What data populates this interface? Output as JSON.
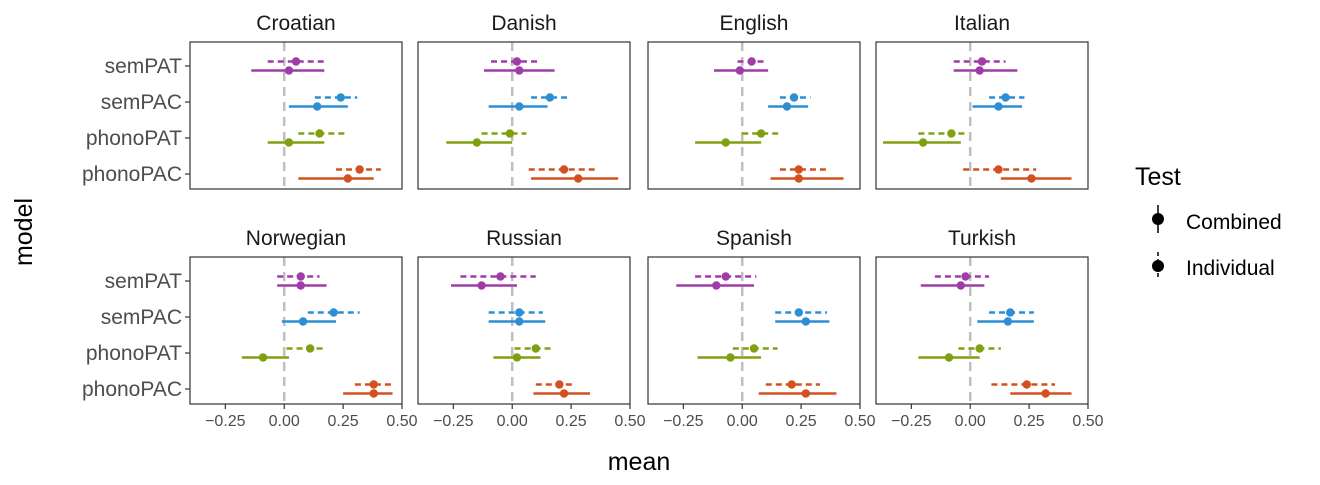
{
  "chart_data": {
    "type": "scatter",
    "subtype": "point-range forest plot, faceted 2x4",
    "xlabel": "mean",
    "ylabel": "model",
    "xlim": [
      -0.4,
      0.5
    ],
    "xticks": [
      -0.25,
      0.0,
      0.25,
      0.5
    ],
    "xtick_labels": [
      "−0.25",
      "0.00",
      "0.25",
      "0.50"
    ],
    "reference_line": 0,
    "models": [
      "semPAT",
      "semPAC",
      "phonoPAT",
      "phonoPAC"
    ],
    "model_colors": {
      "semPAT": "#a03ca8",
      "semPAC": "#2c8fd4",
      "phonoPAT": "#80a010",
      "phonoPAC": "#d4501e"
    },
    "legend": {
      "title": "Test",
      "position": "right",
      "items": [
        {
          "label": "Combined",
          "linetype": "solid"
        },
        {
          "label": "Individual",
          "linetype": "dashed"
        }
      ]
    },
    "facets": [
      {
        "language": "Croatian",
        "data": {
          "semPAT": {
            "individual": {
              "mean": 0.05,
              "lo": -0.07,
              "hi": 0.17
            },
            "combined": {
              "mean": 0.02,
              "lo": -0.14,
              "hi": 0.17
            }
          },
          "semPAC": {
            "individual": {
              "mean": 0.24,
              "lo": 0.13,
              "hi": 0.31
            },
            "combined": {
              "mean": 0.14,
              "lo": 0.02,
              "hi": 0.27
            }
          },
          "phonoPAT": {
            "individual": {
              "mean": 0.15,
              "lo": 0.06,
              "hi": 0.26
            },
            "combined": {
              "mean": 0.02,
              "lo": -0.07,
              "hi": 0.17
            }
          },
          "phonoPAC": {
            "individual": {
              "mean": 0.32,
              "lo": 0.22,
              "hi": 0.41
            },
            "combined": {
              "mean": 0.27,
              "lo": 0.06,
              "hi": 0.38
            }
          }
        }
      },
      {
        "language": "Danish",
        "data": {
          "semPAT": {
            "individual": {
              "mean": 0.02,
              "lo": -0.09,
              "hi": 0.12
            },
            "combined": {
              "mean": 0.03,
              "lo": -0.12,
              "hi": 0.18
            }
          },
          "semPAC": {
            "individual": {
              "mean": 0.16,
              "lo": 0.08,
              "hi": 0.25
            },
            "combined": {
              "mean": 0.03,
              "lo": -0.1,
              "hi": 0.15
            }
          },
          "phonoPAT": {
            "individual": {
              "mean": -0.01,
              "lo": -0.13,
              "hi": 0.06
            },
            "combined": {
              "mean": -0.15,
              "lo": -0.28,
              "hi": 0.0
            }
          },
          "phonoPAC": {
            "individual": {
              "mean": 0.22,
              "lo": 0.07,
              "hi": 0.35
            },
            "combined": {
              "mean": 0.28,
              "lo": 0.08,
              "hi": 0.45
            }
          }
        }
      },
      {
        "language": "English",
        "data": {
          "semPAT": {
            "individual": {
              "mean": 0.04,
              "lo": -0.02,
              "hi": 0.1
            },
            "combined": {
              "mean": -0.01,
              "lo": -0.12,
              "hi": 0.11
            }
          },
          "semPAC": {
            "individual": {
              "mean": 0.22,
              "lo": 0.16,
              "hi": 0.29
            },
            "combined": {
              "mean": 0.19,
              "lo": 0.11,
              "hi": 0.28
            }
          },
          "phonoPAT": {
            "individual": {
              "mean": 0.08,
              "lo": 0.0,
              "hi": 0.16
            },
            "combined": {
              "mean": -0.07,
              "lo": -0.2,
              "hi": 0.08
            }
          },
          "phonoPAC": {
            "individual": {
              "mean": 0.24,
              "lo": 0.16,
              "hi": 0.36
            },
            "combined": {
              "mean": 0.24,
              "lo": 0.12,
              "hi": 0.43
            }
          }
        }
      },
      {
        "language": "Italian",
        "data": {
          "semPAT": {
            "individual": {
              "mean": 0.05,
              "lo": -0.07,
              "hi": 0.15
            },
            "combined": {
              "mean": 0.04,
              "lo": -0.07,
              "hi": 0.2
            }
          },
          "semPAC": {
            "individual": {
              "mean": 0.15,
              "lo": 0.08,
              "hi": 0.23
            },
            "combined": {
              "mean": 0.12,
              "lo": 0.01,
              "hi": 0.22
            }
          },
          "phonoPAT": {
            "individual": {
              "mean": -0.08,
              "lo": -0.22,
              "hi": -0.02
            },
            "combined": {
              "mean": -0.2,
              "lo": -0.37,
              "hi": -0.04
            }
          },
          "phonoPAC": {
            "individual": {
              "mean": 0.12,
              "lo": -0.03,
              "hi": 0.28
            },
            "combined": {
              "mean": 0.26,
              "lo": 0.13,
              "hi": 0.43
            }
          }
        }
      },
      {
        "language": "Norwegian",
        "data": {
          "semPAT": {
            "individual": {
              "mean": 0.07,
              "lo": -0.03,
              "hi": 0.15
            },
            "combined": {
              "mean": 0.07,
              "lo": -0.03,
              "hi": 0.18
            }
          },
          "semPAC": {
            "individual": {
              "mean": 0.21,
              "lo": 0.1,
              "hi": 0.32
            },
            "combined": {
              "mean": 0.08,
              "lo": -0.01,
              "hi": 0.22
            }
          },
          "phonoPAT": {
            "individual": {
              "mean": 0.11,
              "lo": 0.01,
              "hi": 0.18
            },
            "combined": {
              "mean": -0.09,
              "lo": -0.18,
              "hi": 0.02
            }
          },
          "phonoPAC": {
            "individual": {
              "mean": 0.38,
              "lo": 0.3,
              "hi": 0.47
            },
            "combined": {
              "mean": 0.38,
              "lo": 0.25,
              "hi": 0.46
            }
          }
        }
      },
      {
        "language": "Russian",
        "data": {
          "semPAT": {
            "individual": {
              "mean": -0.05,
              "lo": -0.22,
              "hi": 0.1
            },
            "combined": {
              "mean": -0.13,
              "lo": -0.26,
              "hi": 0.02
            }
          },
          "semPAC": {
            "individual": {
              "mean": 0.03,
              "lo": -0.1,
              "hi": 0.13
            },
            "combined": {
              "mean": 0.03,
              "lo": -0.1,
              "hi": 0.14
            }
          },
          "phonoPAT": {
            "individual": {
              "mean": 0.1,
              "lo": 0.01,
              "hi": 0.18
            },
            "combined": {
              "mean": 0.02,
              "lo": -0.08,
              "hi": 0.12
            }
          },
          "phonoPAC": {
            "individual": {
              "mean": 0.2,
              "lo": 0.1,
              "hi": 0.26
            },
            "combined": {
              "mean": 0.22,
              "lo": 0.09,
              "hi": 0.33
            }
          }
        }
      },
      {
        "language": "Spanish",
        "data": {
          "semPAT": {
            "individual": {
              "mean": -0.07,
              "lo": -0.2,
              "hi": 0.06
            },
            "combined": {
              "mean": -0.11,
              "lo": -0.28,
              "hi": 0.05
            }
          },
          "semPAC": {
            "individual": {
              "mean": 0.24,
              "lo": 0.14,
              "hi": 0.36
            },
            "combined": {
              "mean": 0.27,
              "lo": 0.14,
              "hi": 0.37
            }
          },
          "phonoPAT": {
            "individual": {
              "mean": 0.05,
              "lo": -0.04,
              "hi": 0.15
            },
            "combined": {
              "mean": -0.05,
              "lo": -0.19,
              "hi": 0.08
            }
          },
          "phonoPAC": {
            "individual": {
              "mean": 0.21,
              "lo": 0.1,
              "hi": 0.33
            },
            "combined": {
              "mean": 0.27,
              "lo": 0.07,
              "hi": 0.4
            }
          }
        }
      },
      {
        "language": "Turkish",
        "data": {
          "semPAT": {
            "individual": {
              "mean": -0.02,
              "lo": -0.15,
              "hi": 0.08
            },
            "combined": {
              "mean": -0.04,
              "lo": -0.21,
              "hi": 0.06
            }
          },
          "semPAC": {
            "individual": {
              "mean": 0.17,
              "lo": 0.08,
              "hi": 0.27
            },
            "combined": {
              "mean": 0.16,
              "lo": 0.03,
              "hi": 0.27
            }
          },
          "phonoPAT": {
            "individual": {
              "mean": 0.04,
              "lo": -0.05,
              "hi": 0.13
            },
            "combined": {
              "mean": -0.09,
              "lo": -0.22,
              "hi": 0.04
            }
          },
          "phonoPAC": {
            "individual": {
              "mean": 0.24,
              "lo": 0.09,
              "hi": 0.36
            },
            "combined": {
              "mean": 0.32,
              "lo": 0.17,
              "hi": 0.43
            }
          }
        }
      }
    ]
  }
}
